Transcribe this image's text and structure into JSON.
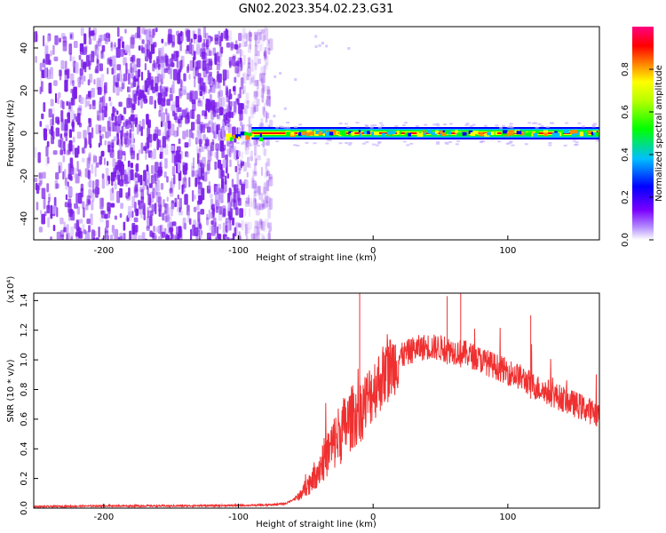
{
  "chart_data": [
    {
      "type": "heatmap",
      "title": "GN02.2023.354.02.23.G31",
      "xlabel": "Height of straight line (km)",
      "ylabel": "Frequency (Hz)",
      "xlim": [
        -252,
        168
      ],
      "ylim": [
        -50,
        50
      ],
      "xticks": [
        "-200",
        "-100",
        "0",
        "100"
      ],
      "yticks": [
        "-40",
        "-20",
        "0",
        "20",
        "40"
      ],
      "colorbar": {
        "label": "Normalized spectral amplitude",
        "ticks": [
          "0.0",
          "0.2",
          "0.4",
          "0.6",
          "0.8"
        ],
        "range": [
          0,
          1
        ],
        "colors": [
          "#ffffff",
          "#7a00ff",
          "#0000ff",
          "#00bfff",
          "#00ff00",
          "#ffff00",
          "#ff8c00",
          "#ff0000",
          "#ff0080"
        ]
      },
      "noise_region": [
        -252,
        -85
      ],
      "noise_color": "#7b1fe8",
      "signal_line": {
        "frequency": 0,
        "x_range": [
          -110,
          168
        ],
        "colors": [
          "#ff0000",
          "#ffff00",
          "#00ff00",
          "#00bfff",
          "#0000ff"
        ]
      }
    },
    {
      "type": "line",
      "xlabel": "Height of straight line (km)",
      "ylabel": "SNR (10 * v/v)",
      "y_multiplier": "(x10⁴)",
      "xlim": [
        -252,
        168
      ],
      "ylim": [
        0,
        1.45
      ],
      "xticks": [
        "-200",
        "-100",
        "0",
        "100"
      ],
      "yticks": [
        "0.0",
        "0.2",
        "0.4",
        "0.6",
        "0.8",
        "1.0",
        "1.2",
        "1.4"
      ],
      "series": [
        {
          "color": "#f03030",
          "x": [
            -252,
            -200,
            -150,
            -100,
            -80,
            -65,
            -55,
            -45,
            -35,
            -25,
            -15,
            -10,
            -5,
            0,
            10,
            20,
            30,
            40,
            50,
            60,
            70,
            80,
            90,
            100,
            110,
            120,
            130,
            140,
            150,
            160,
            168
          ],
          "values": [
            0.01,
            0.015,
            0.015,
            0.018,
            0.02,
            0.03,
            0.08,
            0.2,
            0.35,
            0.5,
            0.62,
            0.65,
            0.72,
            0.8,
            0.92,
            1.02,
            1.07,
            1.09,
            1.08,
            1.06,
            1.04,
            1.0,
            0.96,
            0.92,
            0.88,
            0.82,
            0.78,
            0.74,
            0.7,
            0.66,
            0.63
          ]
        }
      ]
    }
  ]
}
